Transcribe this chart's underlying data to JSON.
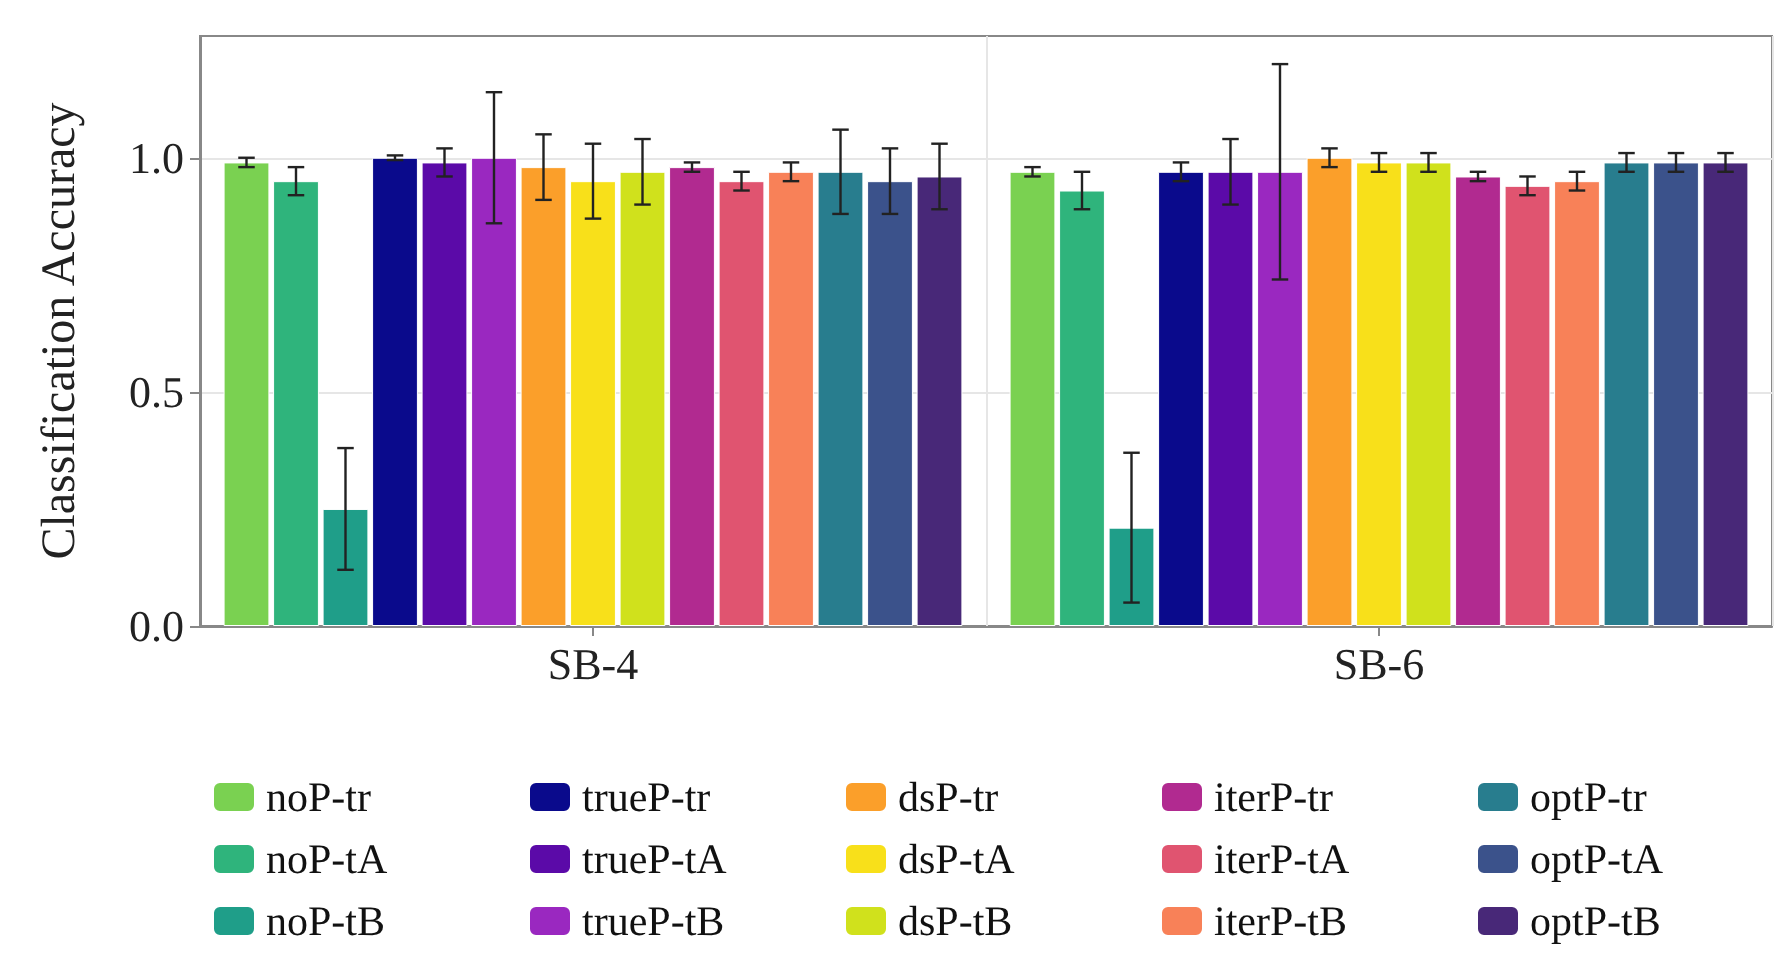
{
  "chart_data": {
    "type": "bar",
    "ylabel": "Classification Accuracy",
    "categories": [
      "SB-4",
      "SB-6"
    ],
    "ylim": [
      0,
      1.26
    ],
    "yticks": [
      {
        "value": 0,
        "label": "0.0"
      },
      {
        "value": 0.5,
        "label": "0.5"
      },
      {
        "value": 1,
        "label": "1.0"
      }
    ],
    "grid": true,
    "legend": "bottom",
    "series": [
      {
        "name": "noP-tr",
        "color": "#7ad151",
        "values": [
          0.99,
          0.97
        ],
        "errors": [
          0.01,
          0.01
        ]
      },
      {
        "name": "noP-tA",
        "color": "#2fb47c",
        "values": [
          0.95,
          0.93
        ],
        "errors": [
          0.03,
          0.04
        ]
      },
      {
        "name": "noP-tB",
        "color": "#1f9e89",
        "values": [
          0.25,
          0.21
        ],
        "errors": [
          0.13,
          0.16
        ]
      },
      {
        "name": "trueP-tr",
        "color": "#0a0a8c",
        "values": [
          1.0,
          0.97
        ],
        "errors": [
          0.005,
          0.02
        ]
      },
      {
        "name": "trueP-tA",
        "color": "#5b0aa8",
        "values": [
          0.99,
          0.97
        ],
        "errors": [
          0.03,
          0.07
        ]
      },
      {
        "name": "trueP-tB",
        "color": "#9a28c0",
        "values": [
          1.0,
          0.97
        ],
        "errors": [
          0.14,
          0.23
        ]
      },
      {
        "name": "dsP-tr",
        "color": "#fb9f2a",
        "values": [
          0.98,
          1.0
        ],
        "errors": [
          0.07,
          0.02
        ]
      },
      {
        "name": "dsP-tA",
        "color": "#f8e01a",
        "values": [
          0.95,
          0.99
        ],
        "errors": [
          0.08,
          0.02
        ]
      },
      {
        "name": "dsP-tB",
        "color": "#d0e11c",
        "values": [
          0.97,
          0.99
        ],
        "errors": [
          0.07,
          0.02
        ]
      },
      {
        "name": "iterP-tr",
        "color": "#b12a90",
        "values": [
          0.98,
          0.96
        ],
        "errors": [
          0.01,
          0.01
        ]
      },
      {
        "name": "iterP-tA",
        "color": "#e05470",
        "values": [
          0.95,
          0.94
        ],
        "errors": [
          0.02,
          0.02
        ]
      },
      {
        "name": "iterP-tB",
        "color": "#f88158",
        "values": [
          0.97,
          0.95
        ],
        "errors": [
          0.02,
          0.02
        ]
      },
      {
        "name": "optP-tr",
        "color": "#287d8e",
        "values": [
          0.97,
          0.99
        ],
        "errors": [
          0.09,
          0.02
        ]
      },
      {
        "name": "optP-tA",
        "color": "#3b528b",
        "values": [
          0.95,
          0.99
        ],
        "errors": [
          0.07,
          0.02
        ]
      },
      {
        "name": "optP-tB",
        "color": "#482878",
        "values": [
          0.96,
          0.99
        ],
        "errors": [
          0.07,
          0.02
        ]
      }
    ]
  }
}
